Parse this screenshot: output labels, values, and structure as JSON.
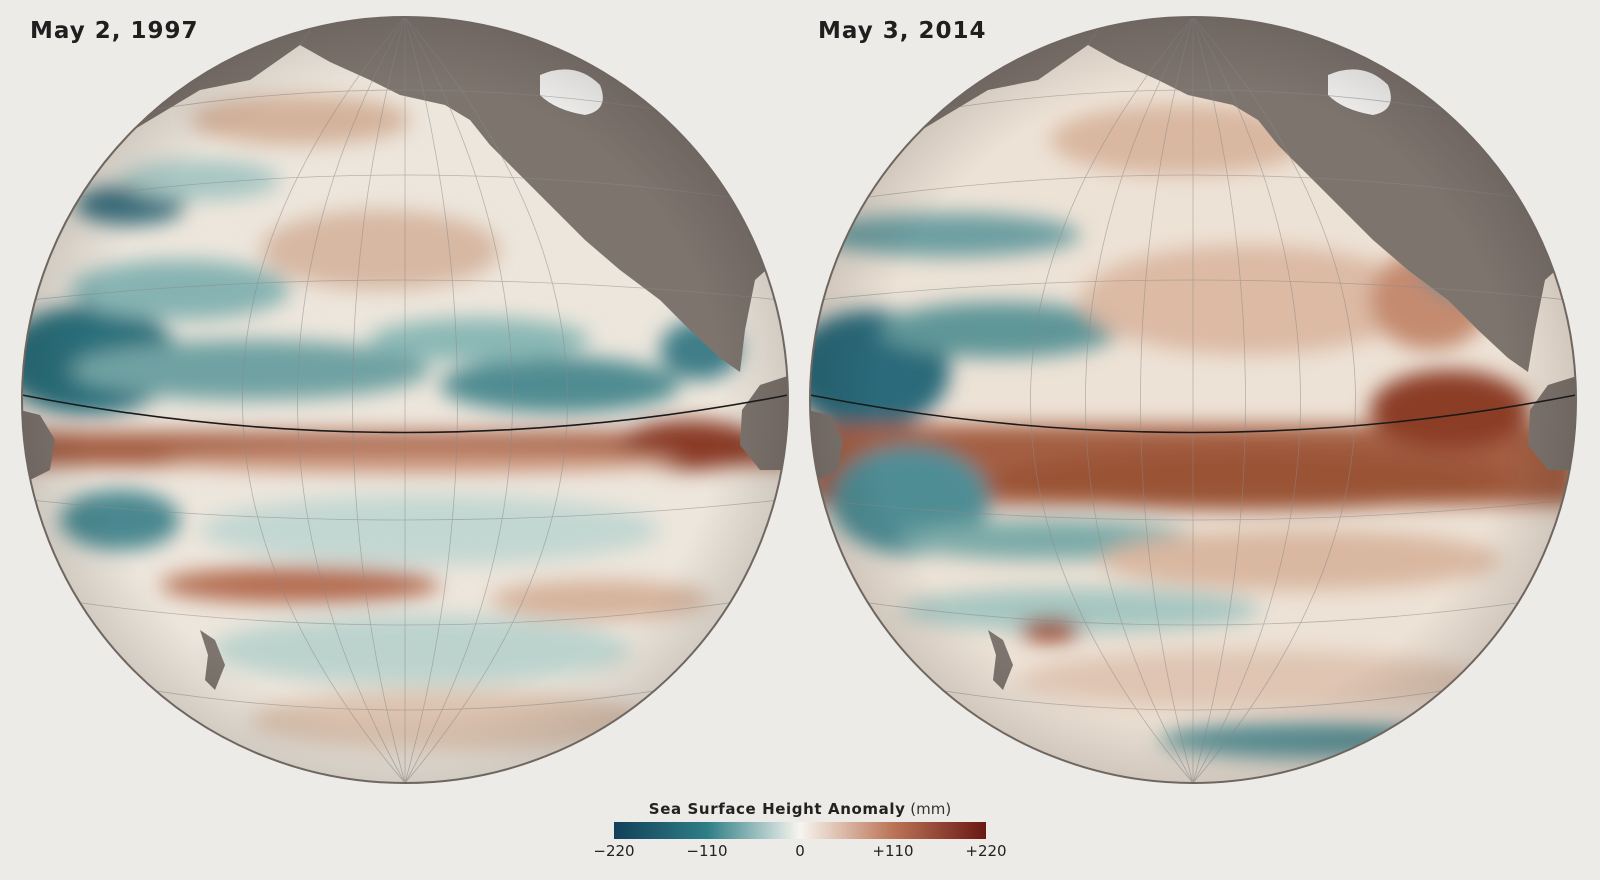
{
  "panels": [
    {
      "id": "left",
      "title": "May 2, 1997"
    },
    {
      "id": "right",
      "title": "May 3, 2014"
    }
  ],
  "legend": {
    "title": "Sea Surface Height Anomaly",
    "unit": "(mm)",
    "ticks": [
      "−220",
      "−110",
      "0",
      "+110",
      "+220"
    ],
    "range": [
      -220,
      220
    ],
    "color_stops": [
      "#12405a",
      "#2e7e86",
      "#f7f5f0",
      "#bb7456",
      "#6a1814"
    ]
  },
  "colors": {
    "background": "#edebe8",
    "land": "#7e746e",
    "graticule": "#8a8a8a",
    "equator": "#1a1a1a"
  }
}
